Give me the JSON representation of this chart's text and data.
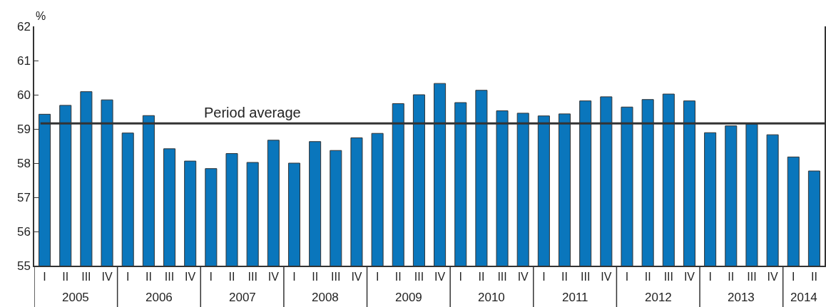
{
  "chart_data": {
    "type": "bar",
    "ylabel": "%",
    "categories": [
      "I",
      "II",
      "III",
      "IV",
      "I",
      "II",
      "III",
      "IV",
      "I",
      "II",
      "III",
      "IV",
      "I",
      "II",
      "III",
      "IV",
      "I",
      "II",
      "III",
      "IV",
      "I",
      "II",
      "III",
      "IV",
      "I",
      "II",
      "III",
      "IV",
      "I",
      "II",
      "III",
      "IV",
      "I",
      "II",
      "III",
      "IV",
      "I",
      "II"
    ],
    "values": [
      59.43,
      59.69,
      60.09,
      59.85,
      58.88,
      59.39,
      58.42,
      58.06,
      57.84,
      58.28,
      58.02,
      58.67,
      58.0,
      58.63,
      58.37,
      58.74,
      58.87,
      59.74,
      60.0,
      60.33,
      59.77,
      60.13,
      59.53,
      59.46,
      59.38,
      59.44,
      59.82,
      59.94,
      59.64,
      59.86,
      60.02,
      59.82,
      58.89,
      59.09,
      59.14,
      58.83,
      58.18,
      57.77
    ],
    "color": "#0a76bc",
    "ylim": [
      55,
      62
    ],
    "yticks": [
      55,
      56,
      57,
      58,
      59,
      60,
      61,
      62
    ],
    "ref_lines": [
      {
        "axis": "y",
        "value": 59.16,
        "label": "Period average",
        "color": "#333333"
      }
    ],
    "annotations": [
      "2005",
      "2006",
      "2007",
      "2008",
      "2009",
      "2010",
      "2011",
      "2012",
      "2013",
      "2014"
    ],
    "legend": false
  }
}
